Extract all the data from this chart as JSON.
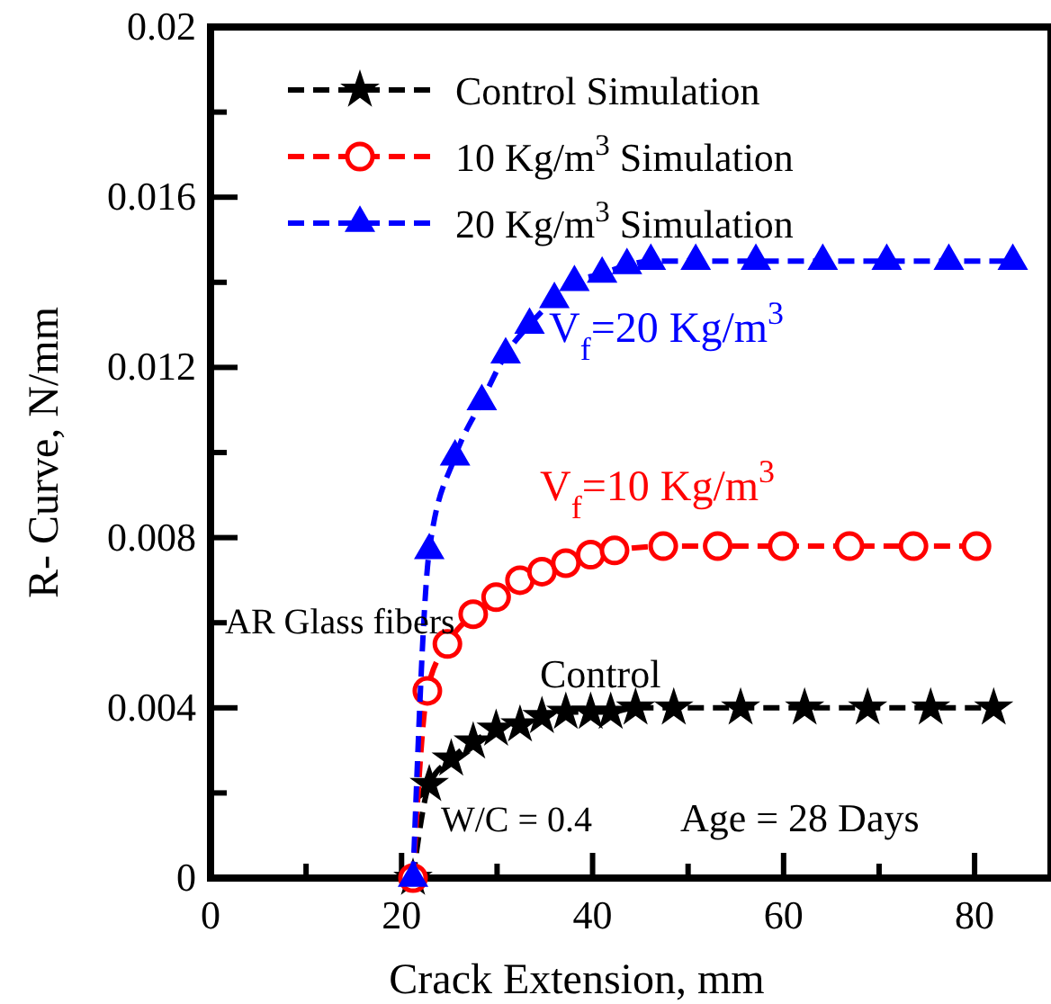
{
  "chart_data": {
    "type": "line",
    "xlabel": "Crack Extension, mm",
    "ylabel": "R- Curve, N/mm",
    "xlim": [
      0,
      88
    ],
    "ylim": [
      0,
      0.02
    ],
    "xticks": [
      0,
      {
        "value": 10,
        "label": null
      },
      20,
      {
        "value": 30,
        "label": null
      },
      40,
      {
        "value": 50,
        "label": null
      },
      60,
      {
        "value": 70,
        "label": null
      },
      80
    ],
    "yticks": [
      0,
      {
        "value": 0.002,
        "label": null
      },
      0.004,
      {
        "value": 0.006,
        "label": null
      },
      0.008,
      {
        "value": 0.01,
        "label": null
      },
      0.012,
      {
        "value": 0.014,
        "label": null
      },
      0.016,
      {
        "value": 0.018,
        "label": null
      },
      0.02
    ],
    "legend": "top left",
    "line_style": "dashed",
    "grid": false,
    "series": [
      {
        "name": "Control Simulation",
        "color": "#000000",
        "marker": "star",
        "x": [
          21.2,
          22.9,
          25.2,
          27.5,
          29.9,
          32.4,
          34.7,
          37.2,
          39.8,
          41.9,
          44.5,
          48.5,
          55.5,
          62.2,
          68.8,
          75.4,
          82.0
        ],
        "values": [
          0,
          0.0022,
          0.0028,
          0.0032,
          0.0035,
          0.0036,
          0.0038,
          0.0039,
          0.0039,
          0.0039,
          0.004,
          0.004,
          0.004,
          0.004,
          0.004,
          0.004,
          0.004
        ]
      },
      {
        "name": "10 Kg/m$^{3}$ Simulation",
        "color": "#ff0000",
        "marker": "circle",
        "x": [
          21.2,
          22.7,
          24.8,
          27.5,
          29.9,
          32.4,
          34.7,
          37.2,
          39.8,
          42.3,
          47.4,
          53.1,
          59.9,
          66.9,
          73.6,
          80.2
        ],
        "values": [
          0,
          0.0044,
          0.0055,
          0.0062,
          0.0066,
          0.007,
          0.0072,
          0.0074,
          0.0076,
          0.0077,
          0.0078,
          0.0078,
          0.0078,
          0.0078,
          0.0078,
          0.0078
        ]
      },
      {
        "name": "20 Kg/m$^{3}$ Simulation",
        "color": "#0000ff",
        "marker": "triangle",
        "x": [
          21.2,
          22.9,
          25.6,
          28.4,
          30.9,
          33.4,
          36.0,
          38.1,
          41.0,
          43.6,
          46.1,
          50.8,
          57.1,
          64.1,
          70.8,
          77.3,
          84.0
        ],
        "values": [
          0,
          0.0077,
          0.0099,
          0.0112,
          0.0123,
          0.013,
          0.0136,
          0.014,
          0.0142,
          0.0144,
          0.0145,
          0.0145,
          0.0145,
          0.0145,
          0.0145,
          0.0145,
          0.0145
        ]
      }
    ],
    "annotations": [
      "V$_{f}$=20 Kg/m$^{3}$",
      "V$_{f}$=10 Kg/m$^{3}$",
      "Control",
      "AR Glass fibers",
      "W/C = 0.4",
      "Age = 28 Days"
    ]
  }
}
